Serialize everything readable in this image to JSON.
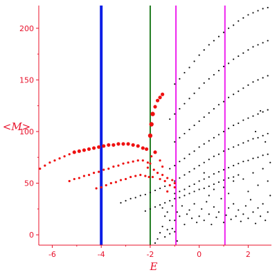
{
  "chart_data": {
    "type": "scatter",
    "title": "",
    "xlabel": "E",
    "ylabel": "<M>",
    "xlim": [
      -6.55,
      2.95
    ],
    "ylim": [
      -10,
      222
    ],
    "x_ticks": [
      -6,
      -4,
      -2,
      0,
      2
    ],
    "y_ticks": [
      0,
      50,
      100,
      150,
      200
    ],
    "grid": false,
    "legend": "none",
    "colors": {
      "axis": "#e8102a",
      "red_series": "#ee1111",
      "black_series": "#111111",
      "line_blue": "#0b1ee6",
      "line_green": "#1e7a1e",
      "line_magenta": "#ee22ee"
    },
    "vertical_lines": [
      {
        "x": -4.0,
        "color": "#0b1ee6"
      },
      {
        "x": -2.0,
        "color": "#1e7a1e"
      },
      {
        "x": -0.95,
        "color": "#ee22ee"
      },
      {
        "x": 1.05,
        "color": "#ee22ee"
      }
    ],
    "series": [
      {
        "color": "#ee1111",
        "points": [
          [
            -6.5,
            64
          ],
          [
            -6.3,
            67
          ],
          [
            -6.1,
            70
          ],
          [
            -5.9,
            72
          ],
          [
            -5.7,
            74
          ],
          [
            -5.5,
            76
          ],
          [
            -5.3,
            78
          ],
          [
            -5.1,
            80
          ],
          [
            -4.9,
            81
          ],
          [
            -4.7,
            82
          ],
          [
            -4.5,
            83
          ],
          [
            -4.3,
            84
          ],
          [
            -4.1,
            85
          ],
          [
            -3.9,
            86
          ],
          [
            -3.7,
            87
          ],
          [
            -3.5,
            87
          ],
          [
            -3.3,
            88
          ],
          [
            -3.1,
            88
          ],
          [
            -2.9,
            88
          ],
          [
            -2.7,
            87
          ],
          [
            -2.5,
            86
          ],
          [
            -2.3,
            84
          ],
          [
            -2.15,
            83
          ],
          [
            -5.3,
            52
          ],
          [
            -5.1,
            54
          ],
          [
            -4.9,
            55
          ],
          [
            -4.7,
            57
          ],
          [
            -4.5,
            58
          ],
          [
            -4.3,
            60
          ],
          [
            -4.1,
            61
          ],
          [
            -3.9,
            63
          ],
          [
            -3.7,
            64
          ],
          [
            -3.5,
            66
          ],
          [
            -3.3,
            67
          ],
          [
            -3.1,
            69
          ],
          [
            -2.9,
            70
          ],
          [
            -2.7,
            71
          ],
          [
            -2.5,
            72
          ],
          [
            -2.3,
            72
          ],
          [
            -2.1,
            70
          ],
          [
            -2.0,
            69
          ],
          [
            -4.2,
            45
          ],
          [
            -4.0,
            46
          ],
          [
            -3.8,
            48
          ],
          [
            -3.6,
            50
          ],
          [
            -3.4,
            51
          ],
          [
            -3.2,
            53
          ],
          [
            -3.0,
            54
          ],
          [
            -2.8,
            56
          ],
          [
            -2.6,
            57
          ],
          [
            -2.4,
            58
          ],
          [
            -2.2,
            57
          ],
          [
            -2.05,
            56
          ],
          [
            -2.0,
            96
          ],
          [
            -1.95,
            107
          ],
          [
            -1.9,
            117
          ],
          [
            -1.8,
            124
          ],
          [
            -1.7,
            130
          ],
          [
            -1.6,
            133
          ],
          [
            -1.5,
            136
          ],
          [
            -1.95,
            76
          ],
          [
            -1.8,
            80
          ],
          [
            -1.6,
            72
          ],
          [
            -1.5,
            66
          ],
          [
            -2.1,
            65
          ],
          [
            -1.85,
            63
          ],
          [
            -1.7,
            60
          ],
          [
            -1.5,
            58
          ],
          [
            -1.3,
            55
          ],
          [
            -1.1,
            53
          ],
          [
            -1.0,
            50
          ],
          [
            -1.9,
            56
          ],
          [
            -1.6,
            54
          ],
          [
            -1.4,
            52
          ],
          [
            -1.2,
            48
          ],
          [
            -1.0,
            46
          ],
          [
            -1.3,
            42
          ]
        ]
      },
      {
        "color": "#111111",
        "points": [
          [
            -1.0,
            146
          ],
          [
            -0.8,
            151
          ],
          [
            -0.6,
            157
          ],
          [
            -0.4,
            162
          ],
          [
            -0.2,
            168
          ],
          [
            0.0,
            174
          ],
          [
            0.2,
            179
          ],
          [
            0.4,
            184
          ],
          [
            0.6,
            188
          ],
          [
            0.8,
            192
          ],
          [
            1.0,
            196
          ],
          [
            1.2,
            200
          ],
          [
            1.4,
            203
          ],
          [
            1.6,
            207
          ],
          [
            1.8,
            210
          ],
          [
            2.0,
            213
          ],
          [
            2.2,
            215
          ],
          [
            2.4,
            217
          ],
          [
            2.6,
            219
          ],
          [
            2.8,
            220
          ],
          [
            -1.2,
            112
          ],
          [
            -1.0,
            117
          ],
          [
            -0.8,
            122
          ],
          [
            -0.6,
            127
          ],
          [
            -0.4,
            132
          ],
          [
            -0.2,
            137
          ],
          [
            0.0,
            142
          ],
          [
            0.2,
            147
          ],
          [
            0.4,
            151
          ],
          [
            0.6,
            155
          ],
          [
            0.8,
            159
          ],
          [
            1.0,
            163
          ],
          [
            1.2,
            166
          ],
          [
            1.4,
            170
          ],
          [
            1.6,
            173
          ],
          [
            1.8,
            176
          ],
          [
            2.0,
            179
          ],
          [
            2.2,
            182
          ],
          [
            2.4,
            184
          ],
          [
            2.6,
            186
          ],
          [
            2.8,
            188
          ],
          [
            -1.0,
            90
          ],
          [
            -0.8,
            94
          ],
          [
            -0.6,
            98
          ],
          [
            -0.4,
            102
          ],
          [
            -0.2,
            106
          ],
          [
            0.0,
            110
          ],
          [
            0.2,
            114
          ],
          [
            0.4,
            118
          ],
          [
            0.6,
            122
          ],
          [
            0.8,
            126
          ],
          [
            1.0,
            129
          ],
          [
            1.2,
            133
          ],
          [
            1.4,
            136
          ],
          [
            1.6,
            139
          ],
          [
            1.8,
            142
          ],
          [
            2.0,
            145
          ],
          [
            2.2,
            148
          ],
          [
            2.4,
            150
          ],
          [
            2.6,
            152
          ],
          [
            2.8,
            154
          ],
          [
            -1.2,
            64
          ],
          [
            -1.0,
            67
          ],
          [
            -0.8,
            71
          ],
          [
            -0.6,
            74
          ],
          [
            -0.4,
            78
          ],
          [
            -0.2,
            81
          ],
          [
            0.0,
            85
          ],
          [
            0.2,
            88
          ],
          [
            0.4,
            91
          ],
          [
            0.6,
            94
          ],
          [
            0.8,
            97
          ],
          [
            1.0,
            100
          ],
          [
            1.2,
            103
          ],
          [
            1.4,
            106
          ],
          [
            1.6,
            108
          ],
          [
            1.8,
            111
          ],
          [
            2.0,
            113
          ],
          [
            2.2,
            115
          ],
          [
            2.4,
            117
          ],
          [
            2.6,
            119
          ],
          [
            2.8,
            121
          ],
          [
            -1.0,
            52
          ],
          [
            -0.8,
            55
          ],
          [
            -0.6,
            58
          ],
          [
            -0.4,
            61
          ],
          [
            -0.2,
            64
          ],
          [
            0.0,
            67
          ],
          [
            0.2,
            70
          ],
          [
            0.4,
            73
          ],
          [
            0.6,
            76
          ],
          [
            0.8,
            78
          ],
          [
            1.0,
            81
          ],
          [
            1.2,
            83
          ],
          [
            1.4,
            85
          ],
          [
            1.6,
            87
          ],
          [
            1.8,
            89
          ],
          [
            2.0,
            91
          ],
          [
            2.2,
            93
          ],
          [
            2.4,
            94
          ],
          [
            2.6,
            96
          ],
          [
            2.8,
            98
          ],
          [
            -1.0,
            40
          ],
          [
            -0.8,
            42
          ],
          [
            -0.6,
            44
          ],
          [
            -0.4,
            47
          ],
          [
            -0.2,
            49
          ],
          [
            0.0,
            52
          ],
          [
            0.2,
            54
          ],
          [
            0.4,
            56
          ],
          [
            0.6,
            59
          ],
          [
            0.8,
            61
          ],
          [
            1.0,
            63
          ],
          [
            1.2,
            65
          ],
          [
            1.4,
            67
          ],
          [
            1.6,
            69
          ],
          [
            1.8,
            71
          ],
          [
            2.0,
            72
          ],
          [
            2.2,
            74
          ],
          [
            2.4,
            75
          ],
          [
            2.6,
            77
          ],
          [
            2.8,
            78
          ],
          [
            -3.2,
            31
          ],
          [
            -3.0,
            33
          ],
          [
            -2.8,
            35
          ],
          [
            -2.6,
            36
          ],
          [
            -2.4,
            38
          ],
          [
            -2.2,
            39
          ],
          [
            -2.0,
            41
          ],
          [
            -1.8,
            43
          ],
          [
            -1.6,
            45
          ],
          [
            -1.4,
            47
          ],
          [
            -2.2,
            23
          ],
          [
            -2.0,
            25
          ],
          [
            -1.8,
            27
          ],
          [
            -1.6,
            29
          ],
          [
            -1.4,
            31
          ],
          [
            -1.2,
            33
          ],
          [
            -1.0,
            35
          ],
          [
            -0.8,
            36
          ],
          [
            -0.6,
            38
          ],
          [
            -0.4,
            40
          ],
          [
            -0.2,
            42
          ],
          [
            0.0,
            44
          ],
          [
            0.2,
            45
          ],
          [
            0.4,
            47
          ],
          [
            0.6,
            49
          ],
          [
            0.8,
            51
          ],
          [
            1.0,
            53
          ],
          [
            1.2,
            55
          ],
          [
            1.4,
            56
          ],
          [
            1.6,
            58
          ],
          [
            -1.0,
            14
          ],
          [
            -0.9,
            22
          ],
          [
            -0.8,
            18
          ],
          [
            -0.7,
            28
          ],
          [
            -0.6,
            10
          ],
          [
            -0.5,
            20
          ],
          [
            -0.4,
            24
          ],
          [
            -0.3,
            16
          ],
          [
            -0.2,
            30
          ],
          [
            -0.1,
            12
          ],
          [
            0.0,
            18
          ],
          [
            0.1,
            25
          ],
          [
            0.2,
            14
          ],
          [
            0.3,
            32
          ],
          [
            0.4,
            20
          ],
          [
            0.5,
            10
          ],
          [
            0.6,
            27
          ],
          [
            0.7,
            17
          ],
          [
            0.8,
            22
          ],
          [
            0.9,
            35
          ],
          [
            1.0,
            12
          ],
          [
            1.1,
            19
          ],
          [
            1.2,
            26
          ],
          [
            1.3,
            15
          ],
          [
            1.4,
            30
          ],
          [
            1.5,
            18
          ],
          [
            1.6,
            24
          ],
          [
            1.7,
            13
          ],
          [
            1.8,
            20
          ],
          [
            1.9,
            28
          ],
          [
            2.0,
            16
          ],
          [
            2.1,
            34
          ],
          [
            2.2,
            22
          ],
          [
            2.3,
            11
          ],
          [
            2.4,
            26
          ],
          [
            2.5,
            18
          ],
          [
            2.6,
            30
          ],
          [
            2.7,
            14
          ],
          [
            2.8,
            22
          ],
          [
            2.9,
            38
          ],
          [
            -1.5,
            26
          ],
          [
            -1.4,
            18
          ],
          [
            -1.3,
            22
          ],
          [
            -1.2,
            14
          ],
          [
            -1.1,
            28
          ],
          [
            -1.5,
            8
          ],
          [
            -1.3,
            5
          ],
          [
            -1.6,
            2
          ],
          [
            -1.1,
            6
          ],
          [
            -1.7,
            -4
          ],
          [
            -1.4,
            -2
          ],
          [
            -1.2,
            1
          ],
          [
            -0.9,
            -6
          ],
          [
            -1.0,
            3
          ],
          [
            -1.8,
            -8
          ],
          [
            0.2,
            60
          ],
          [
            0.6,
            44
          ],
          [
            1.0,
            46
          ],
          [
            1.4,
            52
          ],
          [
            1.8,
            54
          ],
          [
            2.2,
            60
          ],
          [
            2.6,
            64
          ],
          [
            0.4,
            38
          ],
          [
            1.2,
            40
          ],
          [
            2.0,
            42
          ],
          [
            2.4,
            48
          ],
          [
            2.8,
            52
          ],
          [
            2.5,
            120
          ],
          [
            2.7,
            90
          ],
          [
            2.3,
            100
          ],
          [
            2.9,
            70
          ]
        ]
      }
    ]
  }
}
